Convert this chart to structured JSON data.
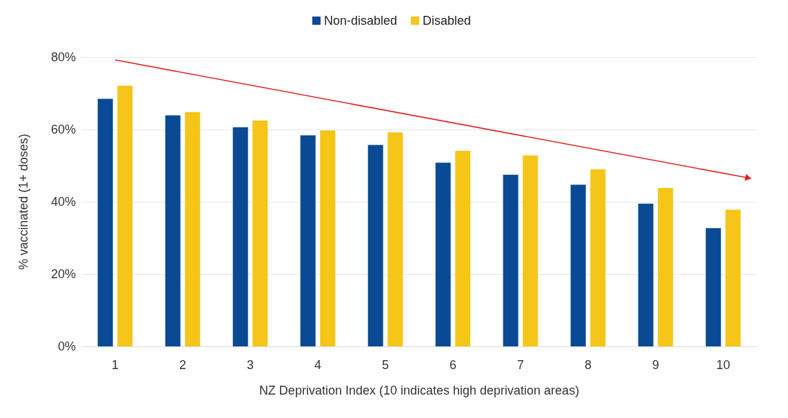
{
  "chart_data": {
    "type": "bar",
    "xlabel": "NZ Deprivation Index (10 indicates high deprivation areas)",
    "ylabel": "% vaccinated (1+ doses)",
    "categories": [
      "1",
      "2",
      "3",
      "4",
      "5",
      "6",
      "7",
      "8",
      "9",
      "10"
    ],
    "series": [
      {
        "name": "Non-disabled",
        "color": "#0a4a94",
        "values": [
          68.5,
          63.9,
          60.6,
          58.4,
          55.7,
          50.8,
          47.5,
          44.7,
          39.5,
          32.7
        ]
      },
      {
        "name": "Disabled",
        "color": "#f5c518",
        "values": [
          72.1,
          64.8,
          62.5,
          59.7,
          59.2,
          54.1,
          52.8,
          49.0,
          43.8,
          37.8
        ]
      }
    ],
    "ylim": [
      0,
      80
    ],
    "yticks": [
      {
        "value": 0,
        "label": "0%"
      },
      {
        "value": 20,
        "label": "20%"
      },
      {
        "value": 40,
        "label": "40%"
      },
      {
        "value": 60,
        "label": "60%"
      },
      {
        "value": 80,
        "label": "80%"
      }
    ],
    "grid": "y",
    "legend": "top"
  }
}
